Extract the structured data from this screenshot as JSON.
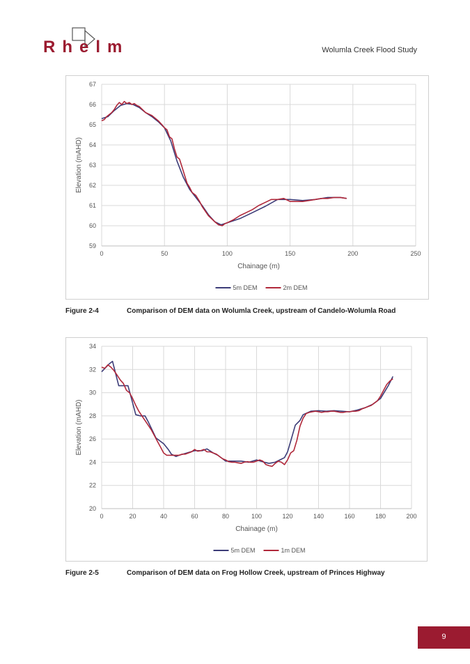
{
  "header": {
    "logo_letters": [
      "R",
      "h",
      "e",
      "l",
      "m"
    ],
    "title": "Wolumla Creek Flood Study"
  },
  "colors": {
    "series_5m": "#3c3c78",
    "series_fine": "#b0283a",
    "brand": "#9b1b30"
  },
  "chart_data": [
    {
      "type": "line",
      "xlabel": "Chainage (m)",
      "ylabel": "Elevation (mAHD)",
      "xlim": [
        0,
        250
      ],
      "xticks": [
        0,
        50,
        100,
        150,
        200,
        250
      ],
      "ylim": [
        59,
        67
      ],
      "yticks": [
        59,
        60,
        61,
        62,
        63,
        64,
        65,
        66,
        67
      ],
      "grid": true,
      "legend": "bottom",
      "series": [
        {
          "name": "5m DEM",
          "color": "#3c3c78",
          "x": [
            0,
            5,
            10,
            15,
            20,
            25,
            30,
            35,
            40,
            45,
            50,
            55,
            60,
            65,
            70,
            75,
            80,
            85,
            90,
            95,
            100,
            110,
            120,
            130,
            140,
            150,
            160,
            170,
            180,
            190,
            195
          ],
          "y": [
            65.3,
            65.4,
            65.7,
            65.95,
            66.05,
            66.0,
            65.85,
            65.6,
            65.4,
            65.15,
            64.85,
            64.2,
            63.2,
            62.4,
            61.8,
            61.4,
            61.0,
            60.55,
            60.2,
            60.05,
            60.15,
            60.35,
            60.65,
            60.95,
            61.3,
            61.3,
            61.25,
            61.3,
            61.4,
            61.4,
            61.35
          ]
        },
        {
          "name": "2m DEM",
          "color": "#b0283a",
          "x": [
            0,
            2,
            4,
            6,
            8,
            10,
            12,
            14,
            16,
            18,
            20,
            22,
            24,
            26,
            28,
            30,
            35,
            40,
            45,
            48,
            50,
            52,
            54,
            56,
            58,
            60,
            62,
            64,
            66,
            68,
            70,
            72,
            75,
            78,
            80,
            85,
            90,
            93,
            96,
            98,
            100,
            105,
            110,
            115,
            120,
            125,
            130,
            135,
            140,
            145,
            150,
            155,
            160,
            165,
            170,
            175,
            180,
            185,
            190,
            195
          ],
          "y": [
            65.2,
            65.25,
            65.4,
            65.5,
            65.6,
            65.75,
            65.95,
            66.1,
            66.0,
            66.15,
            66.05,
            66.1,
            66.0,
            66.05,
            65.95,
            65.9,
            65.6,
            65.45,
            65.2,
            65.0,
            64.85,
            64.75,
            64.4,
            64.3,
            63.8,
            63.4,
            63.3,
            62.9,
            62.5,
            62.1,
            61.9,
            61.65,
            61.5,
            61.2,
            60.95,
            60.5,
            60.2,
            60.05,
            60.0,
            60.1,
            60.15,
            60.3,
            60.5,
            60.65,
            60.8,
            61.0,
            61.15,
            61.3,
            61.3,
            61.35,
            61.2,
            61.2,
            61.2,
            61.25,
            61.3,
            61.35,
            61.35,
            61.4,
            61.4,
            61.35
          ]
        }
      ]
    },
    {
      "type": "line",
      "xlabel": "Chainage (m)",
      "ylabel": "Elevation (mAHD)",
      "xlim": [
        0,
        200
      ],
      "xticks": [
        0,
        20,
        40,
        60,
        80,
        100,
        120,
        140,
        160,
        180,
        200
      ],
      "ylim": [
        20,
        34
      ],
      "yticks": [
        20,
        22,
        24,
        26,
        28,
        30,
        32,
        34
      ],
      "grid": true,
      "legend": "bottom",
      "series": [
        {
          "name": "5m DEM",
          "color": "#3c3c78",
          "x": [
            0,
            5,
            7,
            11,
            15,
            17,
            19,
            22,
            25,
            28,
            30,
            35,
            40,
            43,
            45,
            48,
            50,
            55,
            60,
            65,
            68,
            72,
            75,
            78,
            80,
            85,
            90,
            95,
            100,
            105,
            108,
            112,
            115,
            118,
            120,
            122,
            125,
            128,
            130,
            135,
            140,
            145,
            150,
            155,
            160,
            165,
            170,
            175,
            180,
            185,
            188
          ],
          "y": [
            31.8,
            32.5,
            32.7,
            30.6,
            30.6,
            30.6,
            29.6,
            28.1,
            28.0,
            28.0,
            27.5,
            26.1,
            25.6,
            25.1,
            24.7,
            24.5,
            24.6,
            24.8,
            25.0,
            25.0,
            25.15,
            24.8,
            24.6,
            24.3,
            24.1,
            24.1,
            24.1,
            24.0,
            24.2,
            24.0,
            23.9,
            24.0,
            24.2,
            24.4,
            24.9,
            25.8,
            27.2,
            27.6,
            28.1,
            28.4,
            28.45,
            28.4,
            28.45,
            28.4,
            28.35,
            28.5,
            28.7,
            29.0,
            29.5,
            30.6,
            31.4
          ]
        },
        {
          "name": "1m DEM",
          "color": "#b0283a",
          "x": [
            0,
            2,
            4,
            6,
            8,
            10,
            12,
            14,
            16,
            18,
            20,
            22,
            24,
            26,
            28,
            30,
            32,
            34,
            36,
            38,
            40,
            42,
            44,
            46,
            48,
            50,
            52,
            54,
            56,
            58,
            60,
            62,
            64,
            66,
            68,
            70,
            72,
            74,
            76,
            78,
            80,
            82,
            84,
            86,
            88,
            90,
            92,
            94,
            96,
            98,
            100,
            102,
            104,
            106,
            108,
            110,
            112,
            114,
            116,
            118,
            120,
            122,
            124,
            126,
            128,
            130,
            132,
            134,
            136,
            138,
            140,
            142,
            144,
            146,
            148,
            150,
            152,
            154,
            156,
            158,
            160,
            162,
            164,
            166,
            168,
            170,
            172,
            174,
            176,
            178,
            180,
            182,
            184,
            186,
            188
          ],
          "y": [
            32.2,
            32.1,
            32.4,
            32.2,
            31.9,
            31.5,
            31.1,
            30.8,
            30.2,
            30.0,
            29.5,
            28.9,
            28.4,
            28.0,
            27.6,
            27.2,
            26.8,
            26.3,
            25.8,
            25.3,
            24.8,
            24.6,
            24.6,
            24.6,
            24.6,
            24.6,
            24.7,
            24.7,
            24.8,
            24.9,
            25.1,
            24.95,
            25.0,
            25.1,
            24.9,
            24.9,
            24.8,
            24.7,
            24.5,
            24.3,
            24.2,
            24.05,
            24.0,
            24.0,
            23.95,
            23.9,
            24.0,
            24.05,
            24.0,
            24.0,
            24.1,
            24.2,
            24.1,
            23.8,
            23.7,
            23.65,
            23.9,
            24.1,
            24.0,
            23.8,
            24.2,
            24.8,
            25.0,
            25.9,
            27.1,
            27.8,
            28.2,
            28.3,
            28.35,
            28.4,
            28.35,
            28.3,
            28.35,
            28.35,
            28.4,
            28.4,
            28.35,
            28.3,
            28.3,
            28.35,
            28.35,
            28.4,
            28.4,
            28.45,
            28.6,
            28.7,
            28.8,
            28.9,
            29.1,
            29.3,
            29.7,
            30.2,
            30.7,
            31.0,
            31.2
          ]
        }
      ]
    }
  ],
  "captions": [
    {
      "number": "Figure 2-4",
      "text": "Comparison of DEM data on Wolumla Creek, upstream of Candelo-Wolumla Road"
    },
    {
      "number": "Figure 2-5",
      "text": "Comparison of DEM data on Frog Hollow Creek, upstream of Princes Highway"
    }
  ],
  "footer": {
    "page_number": "9"
  }
}
